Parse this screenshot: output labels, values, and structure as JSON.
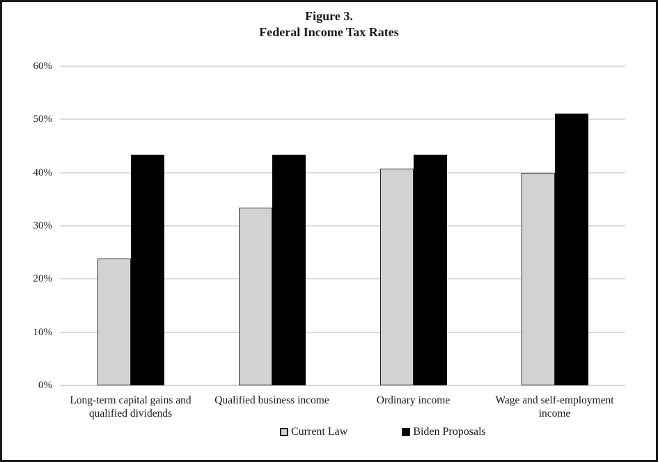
{
  "figure": {
    "title_line1": "Figure 3.",
    "title_line2": "Federal Income Tax Rates"
  },
  "chart_data": {
    "type": "bar",
    "title": "Figure 3.",
    "subtitle": "Federal Income Tax Rates",
    "categories": [
      "Long-term capital gains and qualified dividends",
      "Qualified business income",
      "Ordinary income",
      "Wage and self-employment income"
    ],
    "series": [
      {
        "name": "Current Law",
        "values": [
          23.8,
          33.4,
          40.8,
          40.0
        ],
        "fill": "#d2d2d2",
        "border": "#2b2b2b"
      },
      {
        "name": "Biden Proposals",
        "values": [
          43.4,
          43.4,
          43.4,
          51.1
        ],
        "fill": "#000000",
        "border": "#000000"
      }
    ],
    "xlabel": "",
    "ylabel": "",
    "ylim": [
      0,
      60
    ],
    "yticks": [
      {
        "value": 0,
        "label": "0%"
      },
      {
        "value": 10,
        "label": "10%"
      },
      {
        "value": 20,
        "label": "20%"
      },
      {
        "value": 30,
        "label": "30%"
      },
      {
        "value": 40,
        "label": "40%"
      },
      {
        "value": 50,
        "label": "50%"
      },
      {
        "value": 60,
        "label": "60%"
      }
    ],
    "grid": true,
    "gridline_color": "#dcdcdc",
    "legend_position": "bottom"
  }
}
